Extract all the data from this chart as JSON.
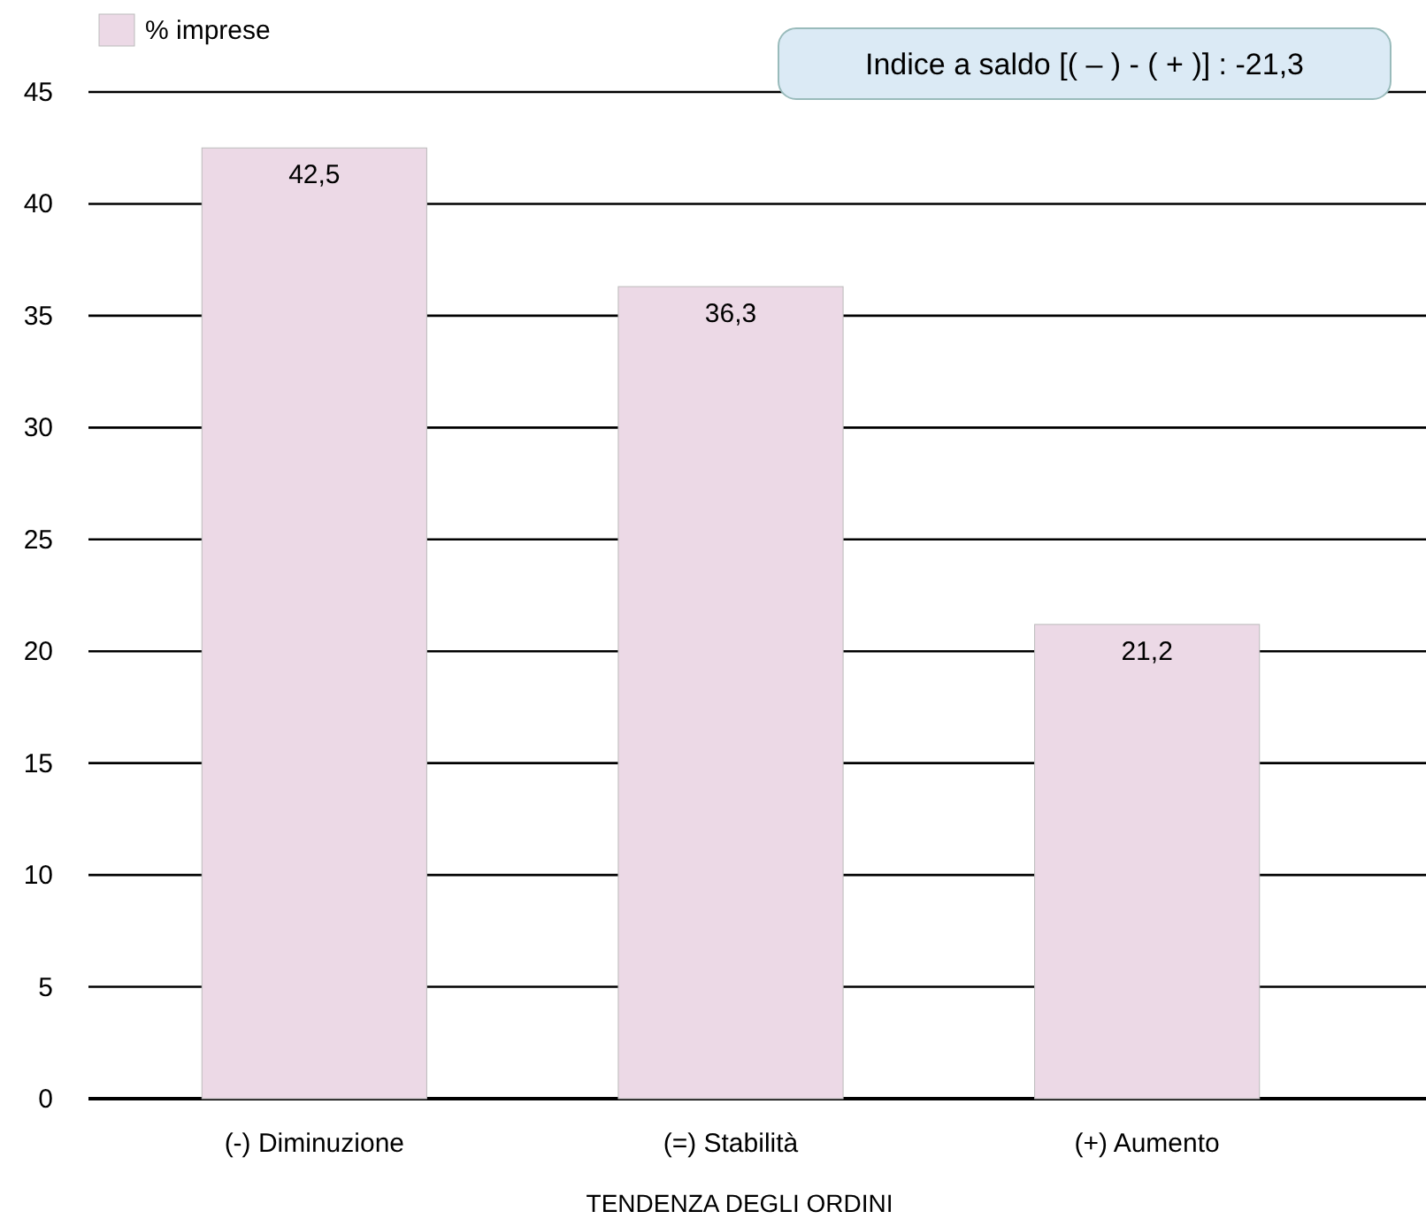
{
  "chart_data": {
    "type": "bar",
    "xlabel": "TENDENZA DEGLI ORDINI",
    "categories": [
      "(-) Diminuzione",
      "(=) Stabilità",
      "(+) Aumento"
    ],
    "series": [
      {
        "name": "% imprese",
        "color": "#ecd9e6",
        "values": [
          42.5,
          36.3,
          21.2
        ],
        "value_labels": [
          "42,5",
          "36,3",
          "21,2"
        ]
      }
    ],
    "ylim": [
      0,
      45
    ],
    "yticks": [
      0,
      5,
      10,
      15,
      20,
      25,
      30,
      35,
      40,
      45
    ],
    "grid": "y",
    "legend": "top left",
    "annotations": [
      "Indice a saldo [( – ) - ( + )] : -21,3"
    ]
  }
}
